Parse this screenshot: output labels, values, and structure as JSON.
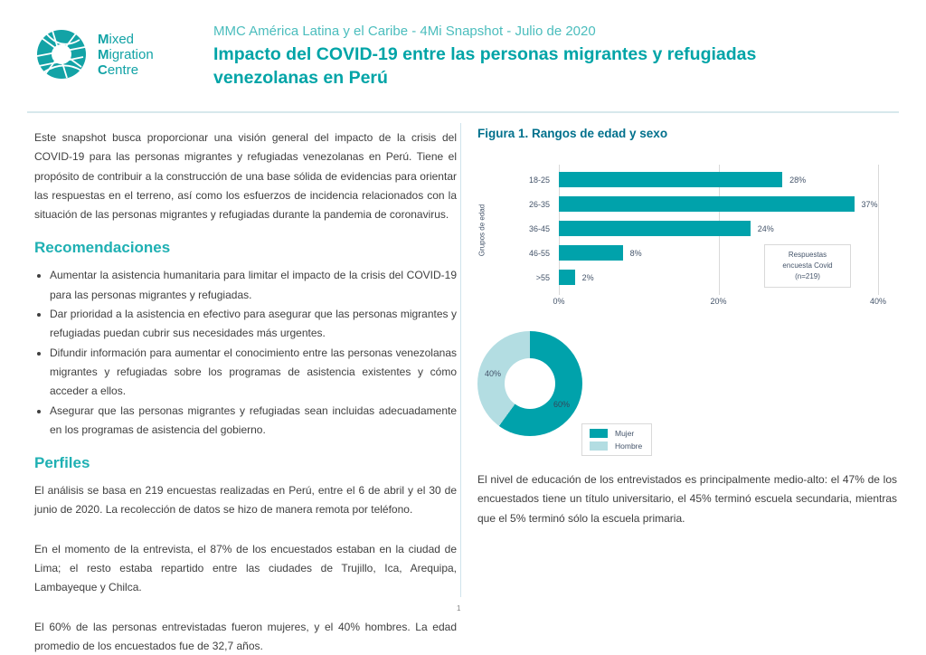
{
  "header": {
    "logo_lines": [
      {
        "bold": "M",
        "rest": "ixed"
      },
      {
        "bold": "M",
        "rest": "igration"
      },
      {
        "bold": "C",
        "rest": "entre"
      }
    ],
    "kicker": "MMC América Latina y el Caribe - 4Mi Snapshot - Julio de 2020",
    "title": "Impacto del COVID-19 entre las personas migrantes y refugiadas venezolanas en Perú"
  },
  "left": {
    "intro": "Este snapshot busca proporcionar una visión general del impacto de la crisis del COVID-19 para las personas migrantes y refugiadas venezolanas en Perú. Tiene el propósito de contribuir a la construcción de una base sólida de evidencias para orientar las respuestas en el terreno, así como los esfuerzos de incidencia relacionados con la situación de las personas migrantes y refugiadas durante la pandemia de coronavirus.",
    "recommendations": {
      "heading": "Recomendaciones",
      "items": [
        "Aumentar la asistencia humanitaria para limitar el impacto de la crisis del COVID-19 para las personas migrantes y refugiadas.",
        "Dar prioridad a la asistencia en efectivo para asegurar que las personas migrantes y refugiadas puedan cubrir sus necesidades más urgentes.",
        "Difundir información para aumentar el conocimiento entre las personas venezolanas migrantes y refugiadas sobre los programas de asistencia existentes y cómo acceder a ellos.",
        "Asegurar que las personas migrantes y refugiadas sean incluidas adecuadamente en los programas de asistencia del gobierno."
      ]
    },
    "profiles": {
      "heading": "Perfiles",
      "paragraphs": [
        "El análisis se basa en 219 encuestas realizadas en Perú, entre el 6 de abril y el 30 de junio de 2020. La recolección de datos se hizo de manera remota por teléfono.",
        "En el momento de la entrevista, el 87% de los encuestados estaban en la ciudad de Lima; el resto estaba repartido entre las ciudades de Trujillo, Ica, Arequipa, Lambayeque y Chilca.",
        "El 60% de las personas entrevistadas fueron mujeres, y el 40% hombres. La edad promedio de los encuestados fue de 32,7 años."
      ]
    }
  },
  "figure": {
    "title": "Figura 1. Rangos de edad y sexo",
    "note": "El nivel de educación de los entrevistados es principalmente medio-alto: el 47% de los encuestados tiene un título universitario, el 45% terminó escuela secundaria, mientras que el 5% terminó sólo la escuela primaria."
  },
  "chart_data": [
    {
      "type": "bar",
      "orientation": "horizontal",
      "title": "Figura 1. Rangos de edad y sexo",
      "categories": [
        "18-25",
        "26-35",
        "36-45",
        "46-55",
        ">55"
      ],
      "values": [
        28,
        37,
        24,
        8,
        2
      ],
      "value_labels": [
        "28%",
        "37%",
        "24%",
        "8%",
        "2%"
      ],
      "ylabel": "Grupos de edad",
      "xlim": [
        0,
        40
      ],
      "ticks": [
        {
          "label": "0%",
          "value": 0
        },
        {
          "label": "20%",
          "value": 20
        },
        {
          "label": "40%",
          "value": 40
        }
      ],
      "annotation_lines": [
        "Respuestas",
        "encuesta Covid",
        "(n=219)"
      ],
      "bar_color": "#00a2ab",
      "grid": true,
      "legend_position": "none"
    },
    {
      "type": "pie",
      "subtype": "donut",
      "segments": [
        {
          "label": "Mujer",
          "value": 60,
          "color": "#00a2ab"
        },
        {
          "label": "Hombre",
          "value": 40,
          "color": "#b3dde2"
        }
      ],
      "label_inner": "60%",
      "label_outer": "40%",
      "legend_position": "right-bottom"
    }
  ],
  "page_number": "1",
  "colors": {
    "brand_teal": "#13a3a6",
    "title_teal": "#00a4a7",
    "kicker_teal": "#4bbdbd",
    "heading_teal": "#1fb0b3",
    "figure_heading": "#00708c",
    "chart_text": "#44546a",
    "bar_teal": "#00a2ab",
    "donut_light": "#b3dde2",
    "divider": "#cfe3ec"
  }
}
